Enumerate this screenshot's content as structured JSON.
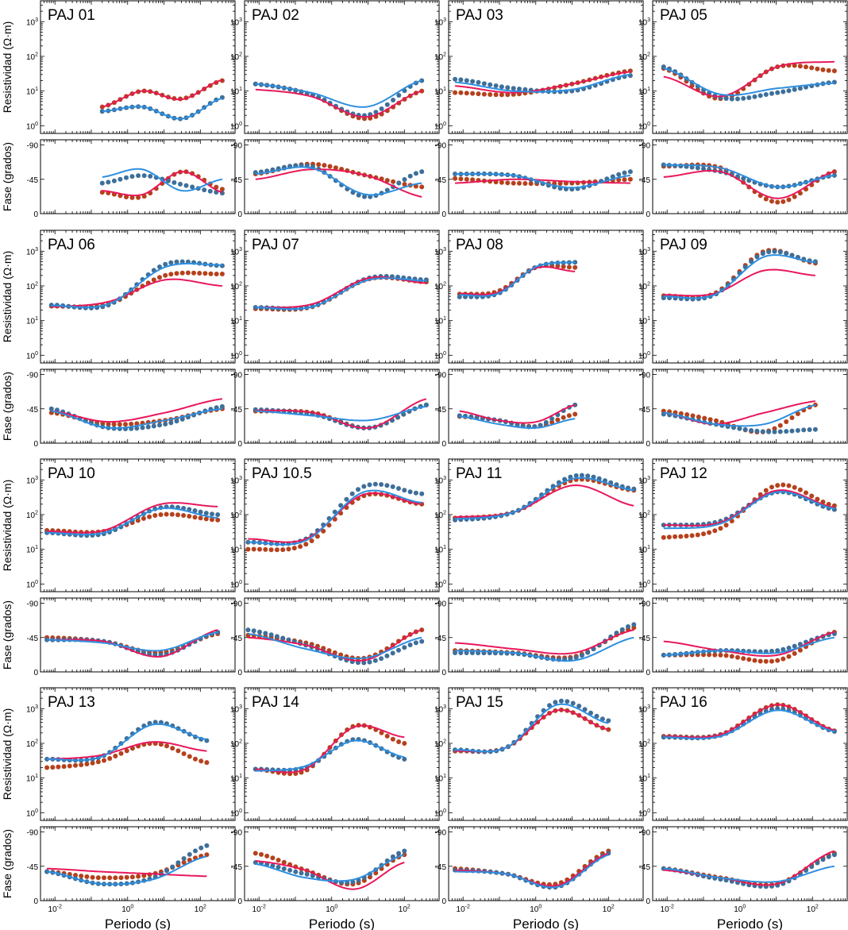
{
  "labels": {
    "ylabel_res": "Resistividad (Ω·m)",
    "ylabel_phase": "Fase (grados)",
    "xlabel": "Periodo (s)"
  },
  "colors": {
    "obs_xy": "#b5411c",
    "obs_yx": "#3e6f9a",
    "model_xy": "#e8185a",
    "model_yx": "#2e8fe0",
    "frame": "#000000"
  },
  "chart_data": {
    "type": "scatter",
    "description_layout": "4x4 grid of magnetotelluric sounding panels (apparent resistivity over phase)",
    "x_scale": "log",
    "xlim": [
      0.004,
      900
    ],
    "x_ticks": [
      {
        "v": 0.01,
        "label": "10-2"
      },
      {
        "v": 1,
        "label": "100"
      },
      {
        "v": 100,
        "label": "102"
      }
    ],
    "res_scale": "log",
    "res_ylim": [
      0.6,
      4000
    ],
    "res_ticks": [
      {
        "v": 1,
        "label": "100"
      },
      {
        "v": 10,
        "label": "101"
      },
      {
        "v": 100,
        "label": "102"
      },
      {
        "v": 1000,
        "label": "103"
      }
    ],
    "phase_ylim": [
      0,
      -90
    ],
    "phase_ticks": [
      {
        "v": 0,
        "label": "0"
      },
      {
        "v": -45,
        "label": "-45"
      },
      {
        "v": -90,
        "label": "-90"
      }
    ],
    "series": [
      {
        "key": "xy_obs",
        "kind": "points",
        "color": "obs_xy"
      },
      {
        "key": "yx_obs",
        "kind": "points",
        "color": "obs_yx"
      },
      {
        "key": "xy_model",
        "kind": "line",
        "color": "model_xy"
      },
      {
        "key": "yx_model",
        "kind": "line",
        "color": "model_yx"
      }
    ],
    "stations": [
      {
        "name": "PAJ 01",
        "xr": [
          0.2,
          400
        ],
        "rho_xy": [
          3.5,
          10,
          6,
          20
        ],
        "rho_yx": [
          2.6,
          3.5,
          1.6,
          6.5
        ],
        "phi_xy": [
          -28,
          -22,
          -55,
          -32
        ],
        "phi_yx": [
          -40,
          -50,
          -38,
          -27
        ],
        "rho_xy_m": [
          3.5,
          10,
          5.8,
          21
        ],
        "rho_yx_m": [
          2.6,
          3.5,
          1.6,
          6.2
        ],
        "phi_xy_m": [
          -30,
          -25,
          -55,
          -28
        ],
        "phi_yx_m": [
          -48,
          -58,
          -30,
          -45
        ]
      },
      {
        "name": "PAJ 02",
        "xr": [
          0.008,
          300
        ],
        "rho_xy": [
          16,
          8,
          1.6,
          10
        ],
        "rho_yx": [
          16,
          8,
          2.0,
          20
        ],
        "phi_xy": [
          -52,
          -65,
          -50,
          -35
        ],
        "phi_yx": [
          -54,
          -62,
          -22,
          -55
        ],
        "rho_xy_m": [
          11,
          7,
          1.8,
          10
        ],
        "rho_yx_m": [
          16,
          9,
          3.5,
          20
        ],
        "phi_xy_m": [
          -45,
          -58,
          -50,
          -22
        ],
        "phi_yx_m": [
          -52,
          -60,
          -25,
          -40
        ]
      },
      {
        "name": "PAJ 03",
        "xr": [
          0.006,
          400
        ],
        "rho_xy": [
          9,
          8,
          16,
          38
        ],
        "rho_yx": [
          22,
          12,
          10,
          28
        ],
        "phi_xy": [
          -46,
          -40,
          -40,
          -45
        ],
        "phi_yx": [
          -52,
          -50,
          -32,
          -55
        ],
        "rho_xy_m": [
          14,
          9,
          16,
          36
        ],
        "rho_yx_m": [
          18,
          10,
          11,
          30
        ],
        "phi_xy_m": [
          -40,
          -45,
          -42,
          -40
        ],
        "phi_yx_m": [
          -52,
          -50,
          -34,
          -50
        ]
      },
      {
        "name": "PAJ 05",
        "xr": [
          0.008,
          400
        ],
        "rho_xy": [
          45,
          6,
          50,
          38
        ],
        "rho_yx": [
          50,
          6.5,
          9,
          18
        ],
        "phi_xy": [
          -62,
          -60,
          -15,
          -55
        ],
        "phi_yx": [
          -64,
          -55,
          -35,
          -50
        ],
        "rho_xy_m": [
          26,
          7,
          50,
          70
        ],
        "rho_yx_m": [
          45,
          8,
          12,
          17
        ],
        "phi_xy_m": [
          -48,
          -55,
          -20,
          -55
        ],
        "phi_yx_m": [
          -64,
          -60,
          -35,
          -50
        ]
      },
      {
        "name": "PAJ 06",
        "xr": [
          0.008,
          400
        ],
        "rho_xy": [
          26,
          30,
          200,
          220
        ],
        "rho_yx": [
          28,
          28,
          420,
          380
        ],
        "phi_xy": [
          -40,
          -25,
          -30,
          -45
        ],
        "phi_yx": [
          -45,
          -20,
          -25,
          -48
        ],
        "rho_xy_m": [
          25,
          35,
          150,
          100
        ],
        "rho_yx_m": [
          27,
          30,
          350,
          400
        ],
        "phi_xy_m": [
          -42,
          -28,
          -40,
          -58
        ],
        "phi_yx_m": [
          -42,
          -20,
          -30,
          -45
        ]
      },
      {
        "name": "PAJ 07",
        "xr": [
          0.008,
          400
        ],
        "rho_xy": [
          22,
          25,
          160,
          130
        ],
        "rho_yx": [
          24,
          26,
          170,
          150
        ],
        "phi_xy": [
          -42,
          -40,
          -20,
          -50
        ],
        "phi_yx": [
          -44,
          -38,
          -20,
          -50
        ],
        "rho_xy_m": [
          24,
          30,
          170,
          120
        ],
        "rho_yx_m": [
          24,
          25,
          150,
          140
        ],
        "phi_xy_m": [
          -43,
          -40,
          -20,
          -58
        ],
        "phi_yx_m": [
          -42,
          -36,
          -30,
          -48
        ]
      },
      {
        "name": "PAJ 08",
        "xr": [
          0.008,
          12
        ],
        "rho_xy": [
          58,
          70,
          350,
          340
        ],
        "rho_yx": [
          48,
          60,
          350,
          480
        ],
        "phi_xy": [
          -35,
          -30,
          -22,
          -38
        ],
        "phi_yx": [
          -36,
          -30,
          -22,
          -50
        ],
        "rho_xy_m": [
          60,
          65,
          330,
          260
        ],
        "rho_yx_m": [
          55,
          60,
          360,
          480
        ],
        "phi_xy_m": [
          -42,
          -30,
          -28,
          -50
        ],
        "phi_yx_m": [
          -35,
          -25,
          -20,
          -32
        ]
      },
      {
        "name": "PAJ 09",
        "xr": [
          0.008,
          120
        ],
        "rho_xy": [
          52,
          60,
          1000,
          450
        ],
        "rho_yx": [
          45,
          55,
          900,
          500
        ],
        "phi_xy": [
          -42,
          -30,
          -15,
          -50
        ],
        "phi_yx": [
          -38,
          -25,
          -15,
          -18
        ],
        "rho_xy_m": [
          55,
          60,
          280,
          200
        ],
        "rho_yx_m": [
          50,
          55,
          700,
          480
        ],
        "phi_xy_m": [
          -40,
          -25,
          -40,
          -55
        ],
        "phi_yx_m": [
          -40,
          -25,
          -25,
          -50
        ]
      },
      {
        "name": "PAJ 10",
        "xr": [
          0.006,
          300
        ],
        "rho_xy": [
          35,
          33,
          100,
          70
        ],
        "rho_yx": [
          30,
          28,
          160,
          100
        ],
        "phi_xy": [
          -45,
          -40,
          -25,
          -50
        ],
        "phi_yx": [
          -42,
          -40,
          -22,
          -52
        ],
        "rho_xy_m": [
          33,
          35,
          200,
          170
        ],
        "rho_yx_m": [
          30,
          30,
          150,
          80
        ],
        "phi_xy_m": [
          -42,
          -40,
          -20,
          -55
        ],
        "phi_yx_m": [
          -42,
          -38,
          -28,
          -52
        ]
      },
      {
        "name": "PAJ 10.5",
        "xr": [
          0.005,
          300
        ],
        "rho_xy": [
          10,
          14,
          350,
          200
        ],
        "rho_yx": [
          16,
          20,
          650,
          400
        ],
        "phi_xy": [
          -48,
          -38,
          -18,
          -55
        ],
        "phi_yx": [
          -55,
          -35,
          -12,
          -40
        ],
        "rho_xy_m": [
          20,
          20,
          380,
          200
        ],
        "rho_yx_m": [
          16,
          18,
          450,
          220
        ],
        "phi_xy_m": [
          -45,
          -35,
          -15,
          -55
        ],
        "phi_yx_m": [
          -50,
          -30,
          -18,
          -45
        ]
      },
      {
        "name": "PAJ 11",
        "xr": [
          0.006,
          500
        ],
        "rho_xy": [
          80,
          120,
          1000,
          500
        ],
        "rho_yx": [
          70,
          120,
          1300,
          550
        ],
        "phi_xy": [
          -28,
          -25,
          -20,
          -58
        ],
        "phi_yx": [
          -25,
          -24,
          -18,
          -62
        ],
        "rho_xy_m": [
          85,
          120,
          700,
          180
        ],
        "rho_yx_m": [
          75,
          120,
          1100,
          500
        ],
        "phi_xy_m": [
          -38,
          -30,
          -25,
          -55
        ],
        "phi_yx_m": [
          -28,
          -25,
          -15,
          -45
        ]
      },
      {
        "name": "PAJ 12",
        "xr": [
          0.008,
          400
        ],
        "rho_xy": [
          22,
          40,
          700,
          180
        ],
        "rho_yx": [
          50,
          65,
          450,
          140
        ],
        "phi_xy": [
          -22,
          -22,
          -15,
          -52
        ],
        "phi_yx": [
          -22,
          -28,
          -28,
          -50
        ],
        "rho_xy_m": [
          50,
          60,
          500,
          160
        ],
        "rho_yx_m": [
          40,
          55,
          450,
          150
        ],
        "phi_xy_m": [
          -40,
          -28,
          -22,
          -52
        ],
        "phi_yx_m": [
          -22,
          -28,
          -25,
          -45
        ]
      },
      {
        "name": "PAJ 13",
        "xr": [
          0.006,
          150
        ],
        "rho_xy": [
          20,
          30,
          100,
          28
        ],
        "rho_yx": [
          35,
          40,
          400,
          120
        ],
        "phi_xy": [
          -38,
          -30,
          -35,
          -60
        ],
        "phi_yx": [
          -38,
          -22,
          -30,
          -72
        ],
        "rho_xy_m": [
          35,
          45,
          110,
          60
        ],
        "rho_yx_m": [
          35,
          40,
          350,
          130
        ],
        "phi_xy_m": [
          -42,
          -38,
          -35,
          -32
        ],
        "phi_yx_m": [
          -38,
          -22,
          -28,
          -58
        ]
      },
      {
        "name": "PAJ 14",
        "xr": [
          0.008,
          100
        ],
        "rho_xy": [
          18,
          16,
          320,
          100
        ],
        "rho_yx": [
          18,
          20,
          130,
          35
        ],
        "phi_xy": [
          -62,
          -40,
          -22,
          -60
        ],
        "phi_yx": [
          -50,
          -35,
          -25,
          -65
        ],
        "rho_xy_m": [
          18,
          18,
          300,
          150
        ],
        "rho_yx_m": [
          16,
          22,
          120,
          40
        ],
        "phi_xy_m": [
          -52,
          -40,
          -15,
          -50
        ],
        "phi_yx_m": [
          -48,
          -30,
          -28,
          -60
        ]
      },
      {
        "name": "PAJ 15",
        "xr": [
          0.006,
          100
        ],
        "rho_xy": [
          60,
          75,
          900,
          250
        ],
        "rho_yx": [
          65,
          75,
          1600,
          450
        ],
        "phi_xy": [
          -42,
          -35,
          -22,
          -65
        ],
        "phi_yx": [
          -40,
          -35,
          -18,
          -62
        ],
        "rho_xy_m": [
          60,
          75,
          900,
          250
        ],
        "rho_yx_m": [
          65,
          75,
          1300,
          380
        ],
        "phi_xy_m": [
          -40,
          -35,
          -20,
          -62
        ],
        "phi_yx_m": [
          -38,
          -35,
          -18,
          -60
        ]
      },
      {
        "name": "PAJ 16",
        "xr": [
          0.008,
          400
        ],
        "rho_xy": [
          160,
          180,
          1300,
          230
        ],
        "rho_yx": [
          150,
          170,
          1000,
          220
        ],
        "phi_xy": [
          -42,
          -30,
          -22,
          -62
        ],
        "phi_yx": [
          -42,
          -28,
          -20,
          -60
        ],
        "rho_xy_m": [
          160,
          180,
          1300,
          240
        ],
        "rho_yx_m": [
          150,
          160,
          900,
          220
        ],
        "phi_xy_m": [
          -40,
          -30,
          -22,
          -65
        ],
        "phi_yx_m": [
          -42,
          -30,
          -25,
          -45
        ]
      }
    ]
  }
}
